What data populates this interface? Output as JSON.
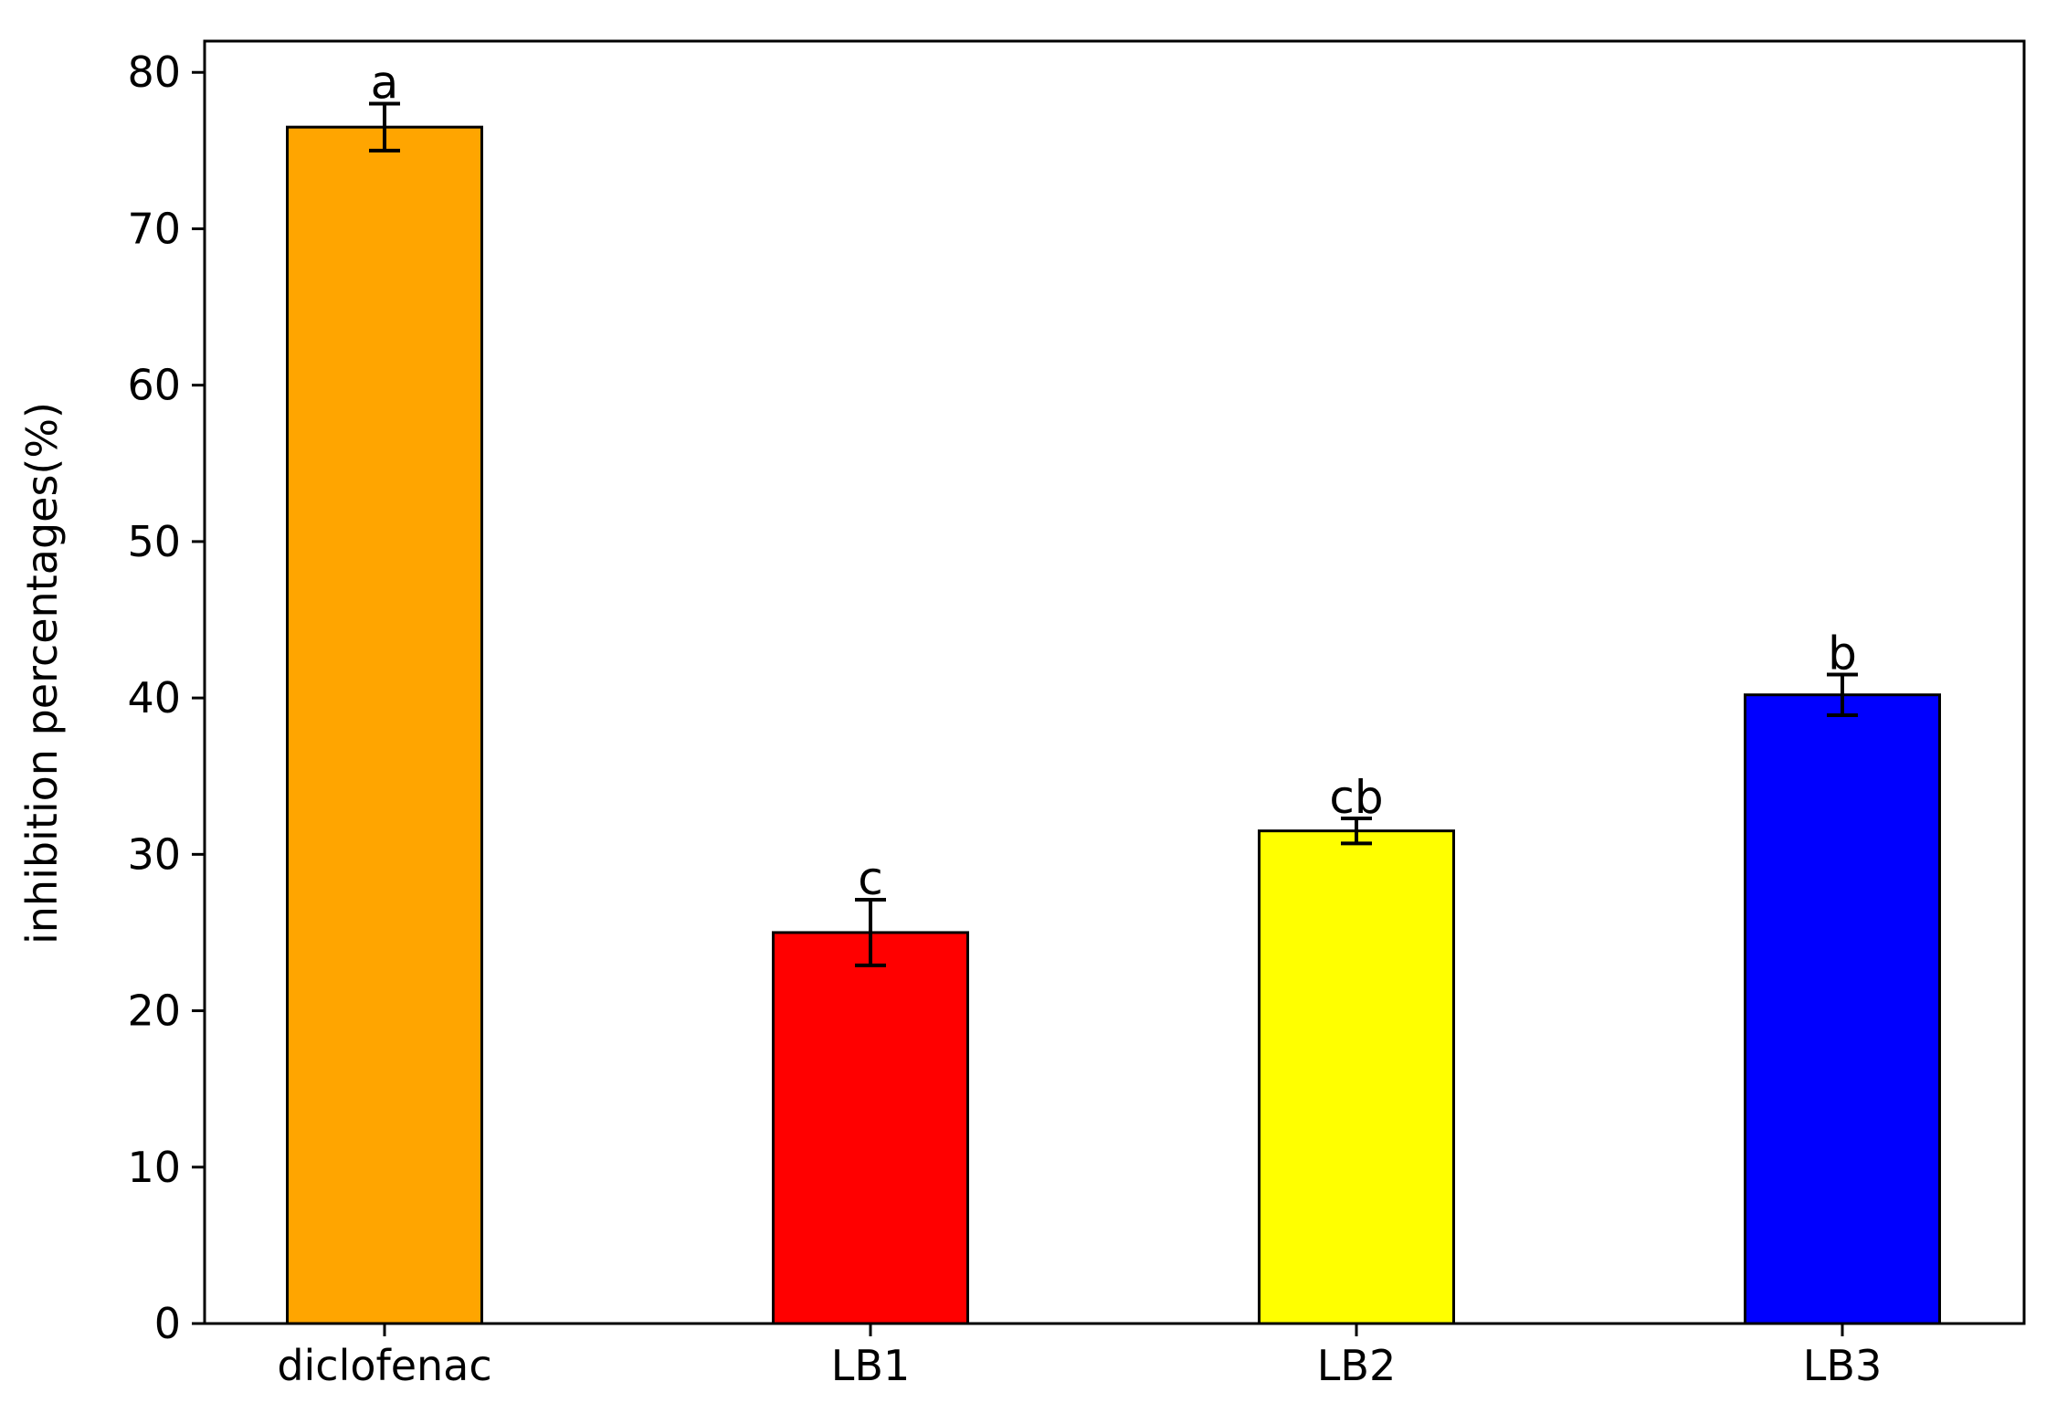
{
  "chart_data": {
    "type": "bar",
    "title": "",
    "xlabel": "",
    "ylabel": "inhibition percentages(%)",
    "categories": [
      "diclofenac",
      "LB1",
      "LB2",
      "LB3"
    ],
    "values": [
      76.5,
      25.0,
      31.5,
      40.2
    ],
    "errors": [
      1.5,
      2.1,
      0.8,
      1.3
    ],
    "annotations": [
      "a",
      "c",
      "cb",
      "b"
    ],
    "colors": [
      "#FFA500",
      "#FF0000",
      "#FFFF00",
      "#0000FF"
    ],
    "ylim": [
      0,
      82
    ],
    "yticks": [
      0,
      10,
      20,
      30,
      40,
      50,
      60,
      70,
      80
    ],
    "grid": false,
    "legend": "none"
  }
}
